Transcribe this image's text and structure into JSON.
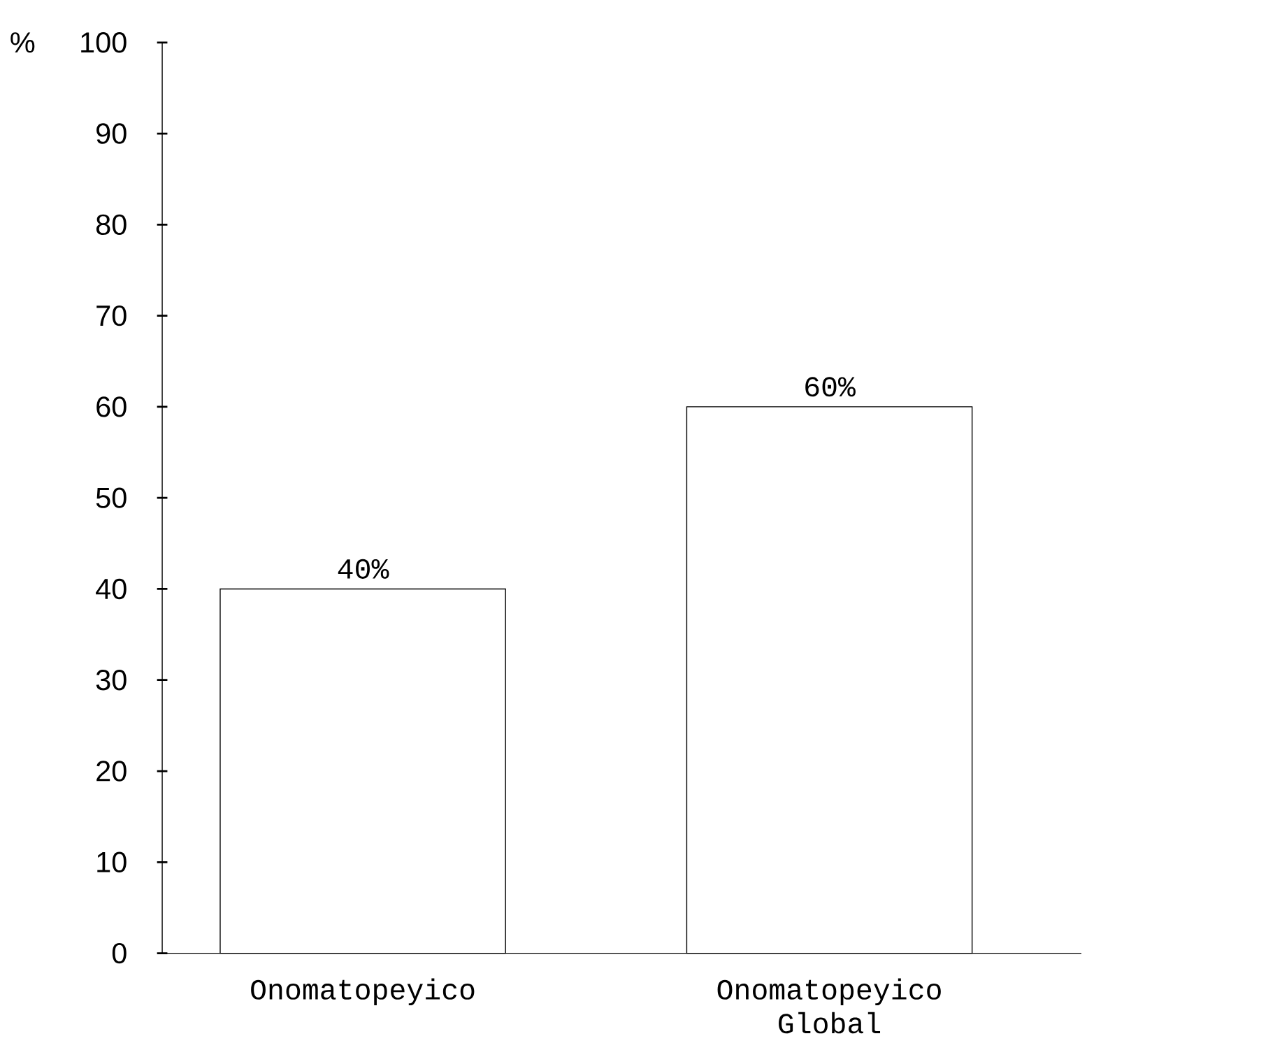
{
  "chart_data": {
    "type": "bar",
    "ylabel": "%",
    "categories": [
      "Onomatopeyico",
      "Onomatopeyico Global"
    ],
    "values": [
      40,
      60
    ],
    "value_labels": [
      "40%",
      "60%"
    ],
    "color": "#ffffff",
    "ylim": [
      0,
      100
    ],
    "yticks": [
      0,
      10,
      20,
      30,
      40,
      50,
      60,
      70,
      80,
      90,
      100
    ]
  }
}
